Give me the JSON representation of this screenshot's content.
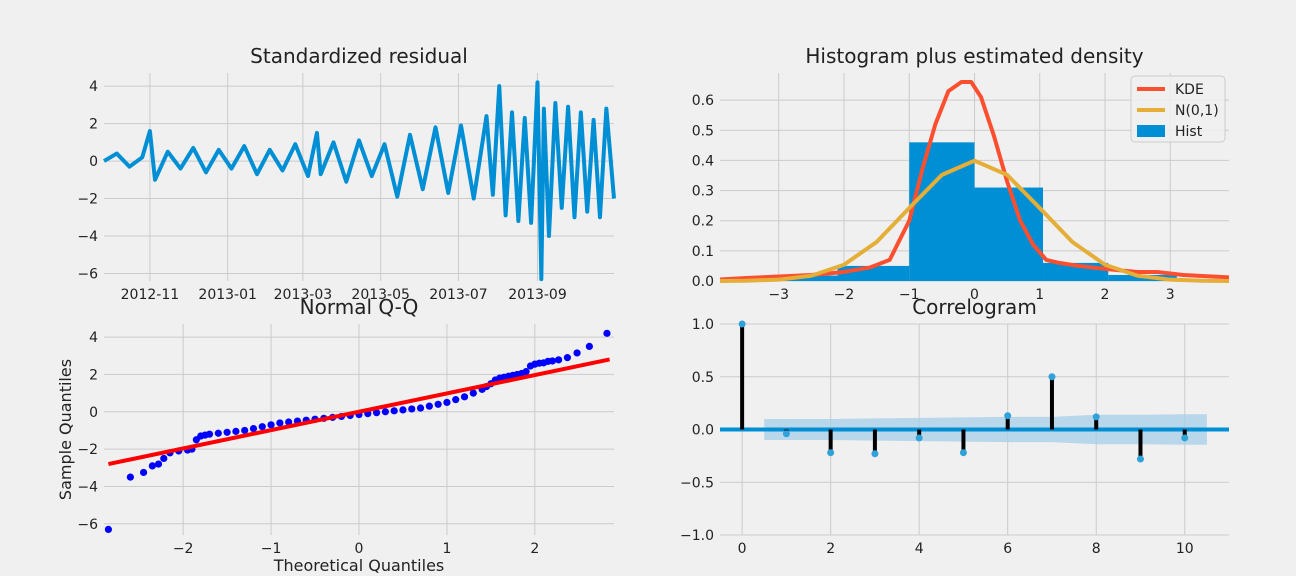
{
  "figure": {
    "background": "#f0f0f0",
    "axes_background": "#f0f0f0",
    "grid_color": "#cbcbcb"
  },
  "chart_data": [
    {
      "type": "line",
      "title": "Standardized residual",
      "xlabel": "",
      "ylabel": "",
      "grid": true,
      "color": "#008fd5",
      "xticks": [
        "2012-11",
        "2013-01",
        "2013-03",
        "2013-05",
        "2013-07",
        "2013-09"
      ],
      "yticks": [
        "4",
        "2",
        "0",
        "−2",
        "−4",
        "−6"
      ],
      "ylim": [
        -6.4,
        4.7
      ],
      "x_range": [
        "2012-09-26",
        "2013-10-31"
      ],
      "dates": [
        "2012-09-26",
        "2012-10-06",
        "2012-10-16",
        "2012-10-26",
        "2012-11-01",
        "2012-11-05",
        "2012-11-15",
        "2012-11-25",
        "2012-12-05",
        "2012-12-15",
        "2012-12-25",
        "2013-01-04",
        "2013-01-14",
        "2013-01-24",
        "2013-02-03",
        "2013-02-13",
        "2013-02-23",
        "2013-03-05",
        "2013-03-12",
        "2013-03-15",
        "2013-03-25",
        "2013-04-04",
        "2013-04-14",
        "2013-04-24",
        "2013-05-04",
        "2013-05-14",
        "2013-05-24",
        "2013-06-03",
        "2013-06-13",
        "2013-06-23",
        "2013-07-03",
        "2013-07-13",
        "2013-07-23",
        "2013-07-28",
        "2013-08-02",
        "2013-08-07",
        "2013-08-12",
        "2013-08-17",
        "2013-08-22",
        "2013-08-27",
        "2013-09-01",
        "2013-09-04",
        "2013-09-06",
        "2013-09-10",
        "2013-09-15",
        "2013-09-20",
        "2013-09-25",
        "2013-09-30",
        "2013-10-05",
        "2013-10-10",
        "2013-10-15",
        "2013-10-20",
        "2013-10-25",
        "2013-10-31"
      ],
      "values": [
        0.0,
        0.4,
        -0.3,
        0.2,
        1.6,
        -1.0,
        0.5,
        -0.4,
        0.7,
        -0.6,
        0.6,
        -0.4,
        0.8,
        -0.7,
        0.6,
        -0.5,
        0.9,
        -0.8,
        1.5,
        -0.7,
        1.0,
        -1.1,
        1.1,
        -0.8,
        0.9,
        -1.9,
        1.4,
        -1.5,
        1.8,
        -1.7,
        1.9,
        -2.0,
        2.4,
        -1.8,
        4.0,
        -2.9,
        2.6,
        -3.2,
        2.3,
        -3.3,
        4.2,
        -6.3,
        2.8,
        -4.0,
        3.1,
        -2.5,
        2.9,
        -3.0,
        2.6,
        -2.7,
        2.2,
        -3.0,
        2.8,
        -2.0
      ]
    },
    {
      "type": "bar",
      "title": "Histogram plus estimated density",
      "xlabel": "",
      "ylabel": "",
      "grid": true,
      "xlim": [
        -3.9,
        3.9
      ],
      "ylim": [
        0,
        0.69
      ],
      "xticks": [
        "−3",
        "−2",
        "−1",
        "0",
        "1",
        "2",
        "3"
      ],
      "yticks": [
        "0.0",
        "0.1",
        "0.2",
        "0.3",
        "0.4",
        "0.5",
        "0.6"
      ],
      "legend_position": "top-right",
      "hist": {
        "name": "Hist",
        "color": "#008fd5",
        "bin_edges": [
          -3.1,
          -2.1,
          -1.0,
          0.0,
          1.05,
          2.05,
          3.1
        ],
        "counts": [
          0.018,
          0.05,
          0.46,
          0.31,
          0.06,
          0.02
        ]
      },
      "series": [
        {
          "name": "KDE",
          "color": "#fc4f30",
          "x": [
            -3.9,
            -3.5,
            -3.0,
            -2.5,
            -2.0,
            -1.6,
            -1.3,
            -1.0,
            -0.8,
            -0.6,
            -0.4,
            -0.2,
            -0.05,
            0.1,
            0.3,
            0.5,
            0.7,
            0.9,
            1.1,
            1.3,
            1.6,
            2.0,
            2.5,
            2.8,
            3.2,
            3.9
          ],
          "y": [
            0.005,
            0.01,
            0.015,
            0.02,
            0.03,
            0.045,
            0.07,
            0.2,
            0.37,
            0.52,
            0.63,
            0.66,
            0.66,
            0.61,
            0.48,
            0.33,
            0.2,
            0.12,
            0.07,
            0.06,
            0.05,
            0.04,
            0.03,
            0.03,
            0.02,
            0.012
          ]
        },
        {
          "name": "N(0,1)",
          "color": "#e5ae38",
          "x": [
            -3.9,
            -3.5,
            -3.0,
            -2.5,
            -2.0,
            -1.5,
            -1.0,
            -0.5,
            0.0,
            0.5,
            1.0,
            1.5,
            2.0,
            2.5,
            3.0,
            3.5,
            3.9
          ],
          "y": [
            0.0002,
            0.0009,
            0.0044,
            0.0175,
            0.054,
            0.1295,
            0.242,
            0.352,
            0.399,
            0.352,
            0.242,
            0.1295,
            0.054,
            0.0175,
            0.0044,
            0.0009,
            0.0002
          ]
        }
      ]
    },
    {
      "type": "scatter",
      "title": "Normal Q-Q",
      "xlabel": "Theoretical Quantiles",
      "ylabel": "Sample Quantiles",
      "grid": true,
      "xlim": [
        -2.9,
        2.9
      ],
      "ylim": [
        -6.6,
        4.7
      ],
      "xticks": [
        "−2",
        "−1",
        "0",
        "1",
        "2"
      ],
      "yticks": [
        "4",
        "2",
        "0",
        "−2",
        "−4",
        "−6"
      ],
      "point_color": "#0000ff",
      "line_color": "#ff0000",
      "line": {
        "x": [
          -2.85,
          2.85
        ],
        "y": [
          -2.8,
          2.8
        ]
      },
      "points": {
        "x": [
          -2.85,
          -2.6,
          -2.45,
          -2.35,
          -2.28,
          -2.22,
          -2.15,
          -2.05,
          -1.95,
          -1.9,
          -1.85,
          -1.8,
          -1.75,
          -1.7,
          -1.6,
          -1.5,
          -1.4,
          -1.3,
          -1.2,
          -1.1,
          -1.0,
          -0.9,
          -0.8,
          -0.7,
          -0.6,
          -0.5,
          -0.4,
          -0.3,
          -0.2,
          -0.1,
          0.0,
          0.1,
          0.2,
          0.3,
          0.4,
          0.5,
          0.6,
          0.7,
          0.8,
          0.9,
          1.0,
          1.1,
          1.2,
          1.3,
          1.4,
          1.45,
          1.5,
          1.55,
          1.6,
          1.65,
          1.7,
          1.75,
          1.8,
          1.85,
          1.9,
          1.95,
          2.0,
          2.05,
          2.1,
          2.15,
          2.2,
          2.27,
          2.37,
          2.48,
          2.62,
          2.82
        ],
        "y": [
          -6.3,
          -3.5,
          -3.25,
          -2.9,
          -2.8,
          -2.5,
          -2.2,
          -2.1,
          -2.05,
          -2.0,
          -1.5,
          -1.3,
          -1.25,
          -1.2,
          -1.15,
          -1.1,
          -1.05,
          -1.0,
          -0.9,
          -0.8,
          -0.7,
          -0.6,
          -0.55,
          -0.5,
          -0.45,
          -0.4,
          -0.35,
          -0.3,
          -0.25,
          -0.2,
          -0.15,
          -0.1,
          -0.05,
          0.0,
          0.05,
          0.1,
          0.15,
          0.2,
          0.3,
          0.4,
          0.5,
          0.65,
          0.8,
          1.0,
          1.2,
          1.35,
          1.5,
          1.7,
          1.8,
          1.85,
          1.9,
          1.95,
          2.0,
          2.05,
          2.15,
          2.45,
          2.55,
          2.6,
          2.62,
          2.7,
          2.72,
          2.78,
          2.9,
          3.15,
          3.5,
          4.2
        ]
      }
    },
    {
      "type": "bar",
      "title": "Correlogram",
      "xlabel": "",
      "ylabel": "",
      "grid": true,
      "xlim": [
        -0.5,
        11
      ],
      "ylim": [
        -1.0,
        1.0
      ],
      "xticks": [
        "0",
        "2",
        "4",
        "6",
        "8",
        "10"
      ],
      "yticks": [
        "1.0",
        "0.5",
        "0.0",
        "−0.5",
        "−1.0"
      ],
      "stem_color": "#000000",
      "marker_color": "#30a2da",
      "zero_line_color": "#008fd5",
      "band_color": "#a6cfe9",
      "lags": [
        0,
        1,
        2,
        3,
        4,
        5,
        6,
        7,
        8,
        9,
        10
      ],
      "values": [
        1.0,
        -0.04,
        -0.22,
        -0.23,
        -0.08,
        -0.22,
        0.13,
        0.5,
        0.12,
        -0.28,
        -0.08
      ],
      "confidence_band": {
        "lags": [
          0.5,
          1,
          2,
          3,
          4,
          5,
          6,
          7,
          8,
          9,
          10,
          10.5
        ],
        "upper": [
          0.1,
          0.1,
          0.1,
          0.105,
          0.11,
          0.115,
          0.12,
          0.12,
          0.14,
          0.14,
          0.145,
          0.145
        ],
        "lower": [
          -0.1,
          -0.1,
          -0.1,
          -0.105,
          -0.11,
          -0.115,
          -0.12,
          -0.12,
          -0.14,
          -0.14,
          -0.145,
          -0.145
        ]
      }
    }
  ]
}
